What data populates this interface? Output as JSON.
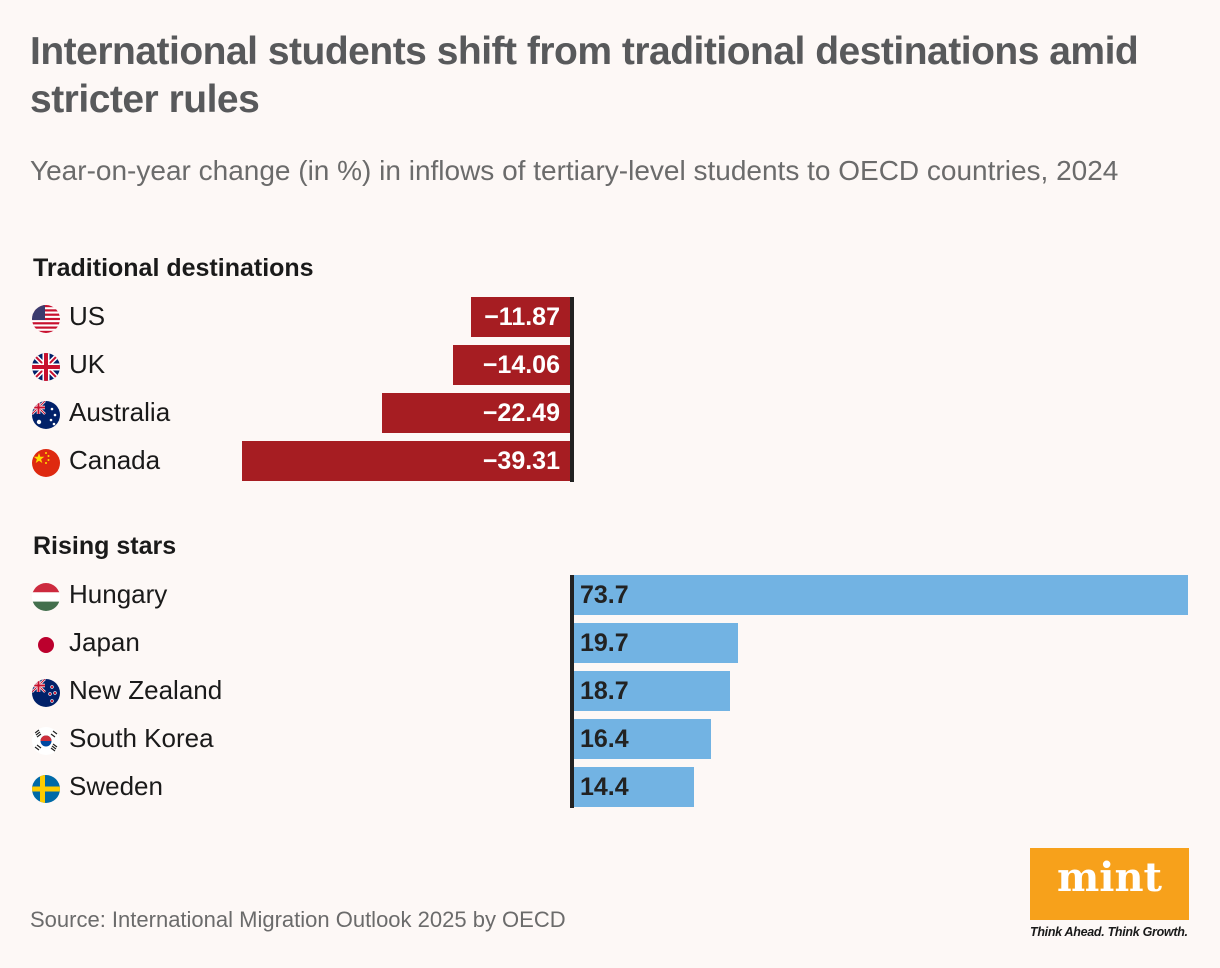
{
  "header": {
    "title": "International students shift from traditional destinations amid stricter rules",
    "subtitle": "Year-on-year change (in %) in inflows of tertiary-level students to OECD countries, 2024"
  },
  "chart_data": {
    "type": "bar",
    "orientation": "horizontal",
    "unit": "%",
    "xlim": [
      -39.31,
      73.7
    ],
    "groups": [
      {
        "name": "Traditional destinations",
        "color": "#a61d22",
        "categories": [
          "US",
          "UK",
          "Australia",
          "Canada"
        ],
        "values": [
          -11.87,
          -14.06,
          -22.49,
          -39.31
        ],
        "labels": [
          "−11.87",
          "−14.06",
          "−22.49",
          "−39.31"
        ],
        "flags": [
          "us-flag-icon",
          "uk-flag-icon",
          "australia-flag-icon",
          "canada-flag-icon"
        ]
      },
      {
        "name": "Rising stars",
        "color": "#72b3e3",
        "categories": [
          "Hungary",
          "Japan",
          "New Zealand",
          "South Korea",
          "Sweden"
        ],
        "values": [
          73.7,
          19.7,
          18.7,
          16.4,
          14.4
        ],
        "labels": [
          "73.7",
          "19.7",
          "18.7",
          "16.4",
          "14.4"
        ],
        "flags": [
          "hungary-flag-icon",
          "japan-flag-icon",
          "new-zealand-flag-icon",
          "south-korea-flag-icon",
          "sweden-flag-icon"
        ]
      }
    ]
  },
  "footer": {
    "source": "Source: International Migration Outlook 2025 by OECD",
    "logo_text": "mint",
    "tagline": "Think Ahead. Think Growth."
  },
  "colors": {
    "negative": "#a61d22",
    "positive": "#72b3e3",
    "logo": "#f7a11b"
  }
}
